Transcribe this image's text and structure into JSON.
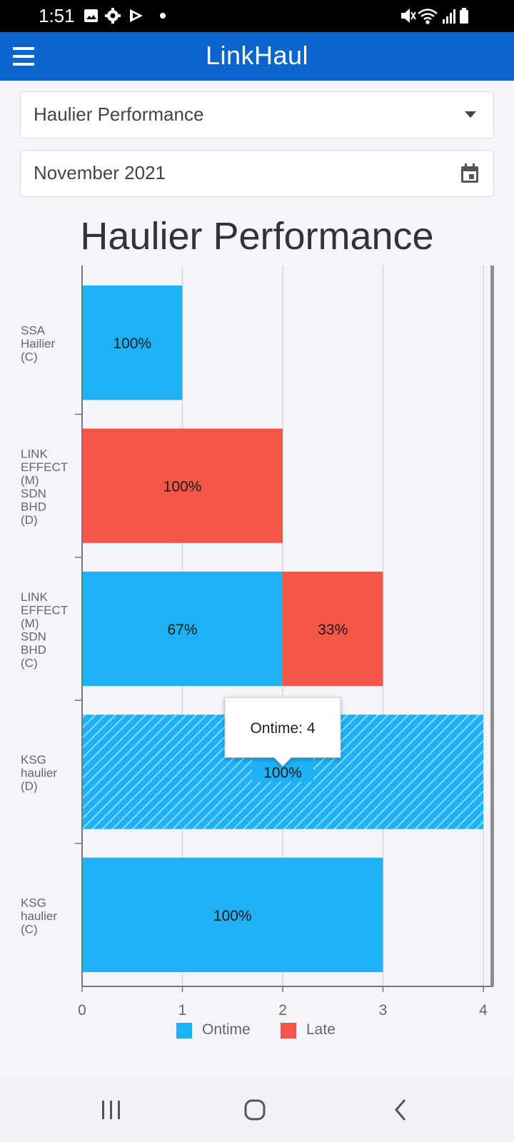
{
  "status_bar": {
    "time": "1:51",
    "left_icons": [
      "gallery-icon",
      "settings-icon",
      "play-store-icon",
      "dot-icon"
    ],
    "right_icons": [
      "mute-icon",
      "wifi-icon",
      "signal-icon",
      "battery-icon"
    ]
  },
  "header": {
    "title": "LinkHaul",
    "menu_icon": "hamburger-menu-icon"
  },
  "filters": {
    "report_type": "Haulier Performance",
    "period": "November 2021",
    "dropdown_icon": "caret-down-icon",
    "calendar_icon": "calendar-icon"
  },
  "chart_data": {
    "type": "bar",
    "orientation": "horizontal",
    "stacked": true,
    "title": "Haulier Performance",
    "categories": [
      "SSA Hailier (C)",
      "LINK EFFECT (M) SDN BHD (D)",
      "LINK EFFECT (M) SDN BHD (C)",
      "KSG haulier (D)",
      "KSG haulier (C)"
    ],
    "series": [
      {
        "name": "Ontime",
        "color": "#1eb1f5",
        "values": [
          1,
          0,
          2,
          4,
          3
        ],
        "labels": [
          "100%",
          "",
          "67%",
          "100%",
          "100%"
        ]
      },
      {
        "name": "Late",
        "color": "#f4574a",
        "values": [
          0,
          2,
          1,
          0,
          0
        ],
        "labels": [
          "",
          "100%",
          "33%",
          "",
          ""
        ]
      }
    ],
    "xlim": [
      0,
      4
    ],
    "xticks": [
      "0",
      "1",
      "2",
      "3",
      "4"
    ],
    "grid": true,
    "legend": "bottom",
    "highlighted": {
      "category": "KSG haulier (D)",
      "tooltip": "Ontime: 4"
    }
  },
  "nav": {
    "recents_icon": "recents-icon",
    "home_icon": "home-icon",
    "back_icon": "back-icon"
  }
}
